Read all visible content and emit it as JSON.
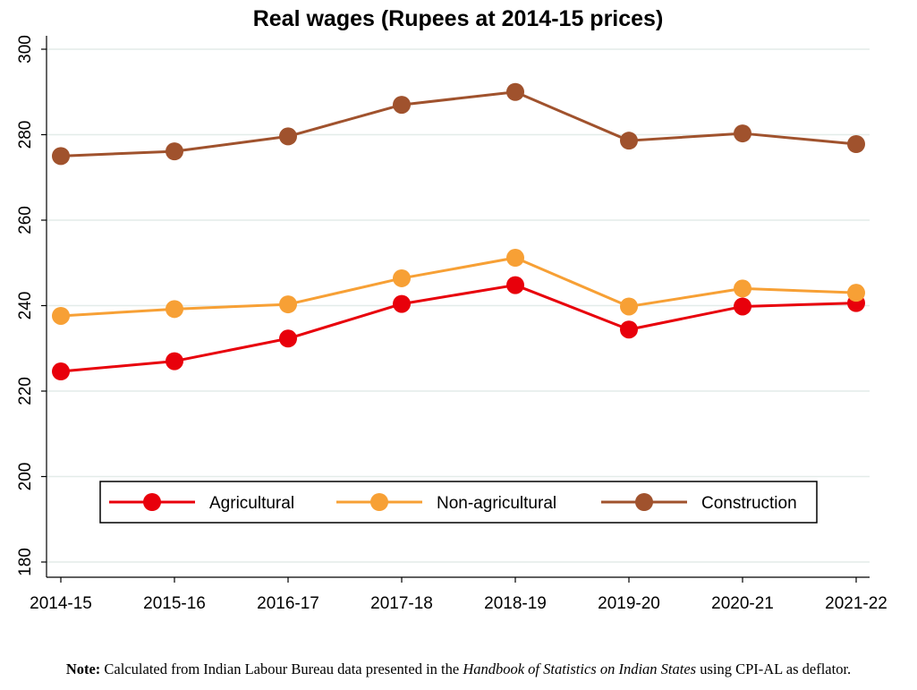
{
  "chart_data": {
    "type": "line",
    "title": "Real wages (Rupees at 2014-15 prices)",
    "xlabel": "",
    "ylabel": "",
    "categories": [
      "2014-15",
      "2015-16",
      "2016-17",
      "2017-18",
      "2018-19",
      "2019-20",
      "2020-21",
      "2021-22"
    ],
    "ylim": [
      180,
      300
    ],
    "yticks": [
      180,
      200,
      220,
      240,
      260,
      280,
      300
    ],
    "grid": true,
    "legend_position": "bottom-inside",
    "series": [
      {
        "name": "Agricultural",
        "color": "#e8000b",
        "values": [
          224.6,
          227.0,
          232.3,
          240.4,
          244.8,
          234.4,
          239.8,
          240.6
        ]
      },
      {
        "name": "Non-agricultural",
        "color": "#f7a035",
        "values": [
          237.6,
          239.2,
          240.3,
          246.4,
          251.2,
          239.8,
          244.0,
          243.0
        ]
      },
      {
        "name": "Construction",
        "color": "#a0522d",
        "values": [
          275.0,
          276.1,
          279.6,
          287.0,
          290.0,
          278.6,
          280.3,
          277.8
        ]
      }
    ]
  },
  "note": {
    "label": "Note:",
    "text_before": " Calculated from Indian Labour Bureau data presented in the ",
    "source_title": "Handbook of Statistics on Indian States",
    "text_after": " using CPI-AL as deflator."
  }
}
